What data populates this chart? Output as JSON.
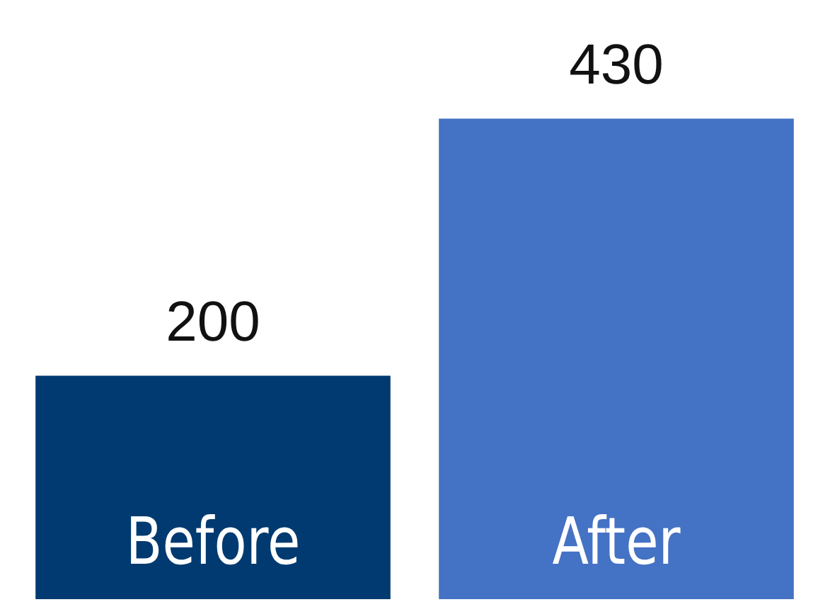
{
  "chart_data": {
    "type": "bar",
    "categories": [
      "Before",
      "After"
    ],
    "values": [
      200,
      430
    ],
    "colors": [
      "#003a70",
      "#4472c4"
    ],
    "data_labels": true,
    "legend": false,
    "tick_labels": "x"
  }
}
